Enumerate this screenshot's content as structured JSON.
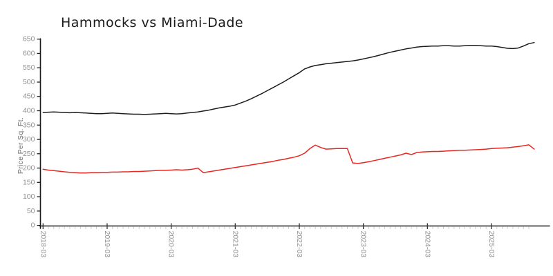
{
  "page": {
    "background": "#ffffff"
  },
  "chart_data": {
    "type": "line",
    "title": "Hammocks vs Miami-Dade",
    "ylabel": "Price Per Sq. Ft.",
    "xlabel": "",
    "ylim": [
      0,
      650
    ],
    "grid": false,
    "legend": "none",
    "style": "hand-drawn (xkcd-like), black and red lines on white",
    "x_start": "2018-03",
    "x_freq": "monthly",
    "x_ticklabels": [
      "2018-03",
      "2019-03",
      "2020-03",
      "2021-03",
      "2022-03",
      "2023-03",
      "2024-03",
      "2025-03"
    ],
    "y_ticks": [
      0,
      50,
      100,
      150,
      200,
      250,
      300,
      350,
      400,
      450,
      500,
      550,
      600,
      650
    ],
    "colors": {
      "axis": "#1a1a1a",
      "major_tick": "#333333",
      "minor_tick": "#cccccc",
      "tick_label": "#8f8f8f",
      "title": "#1a1a1a"
    },
    "series": [
      {
        "name": "black",
        "color": "#1c1c1c",
        "values": [
          394,
          395,
          396,
          395,
          394,
          393,
          394,
          393,
          392,
          391,
          390,
          390,
          391,
          392,
          391,
          390,
          389,
          388,
          388,
          387,
          388,
          389,
          390,
          391,
          390,
          389,
          390,
          392,
          394,
          396,
          399,
          402,
          406,
          410,
          413,
          416,
          420,
          427,
          434,
          442,
          451,
          460,
          470,
          480,
          490,
          500,
          511,
          522,
          533,
          546,
          553,
          558,
          561,
          564,
          566,
          568,
          570,
          572,
          574,
          577,
          581,
          585,
          589,
          594,
          599,
          604,
          608,
          612,
          616,
          619,
          622,
          624,
          625,
          626,
          626,
          627,
          627,
          626,
          626,
          627,
          628,
          628,
          627,
          626,
          626,
          624,
          621,
          618,
          617,
          619,
          626,
          634,
          638
        ]
      },
      {
        "name": "red",
        "color": "#e8261f",
        "values": [
          196,
          193,
          191,
          189,
          187,
          185,
          184,
          183,
          183,
          184,
          184,
          185,
          185,
          186,
          186,
          187,
          187,
          188,
          188,
          189,
          190,
          191,
          192,
          192,
          193,
          194,
          193,
          194,
          196,
          200,
          184,
          187,
          190,
          193,
          196,
          199,
          202,
          205,
          208,
          211,
          214,
          217,
          220,
          223,
          227,
          230,
          234,
          238,
          243,
          252,
          268,
          280,
          272,
          266,
          267,
          268,
          268,
          268,
          218,
          216,
          219,
          222,
          226,
          230,
          234,
          238,
          242,
          246,
          252,
          247,
          254,
          256,
          257,
          258,
          258,
          259,
          260,
          261,
          262,
          262,
          263,
          264,
          265,
          266,
          268,
          269,
          270,
          271,
          273,
          275,
          278,
          281,
          266
        ]
      }
    ]
  }
}
